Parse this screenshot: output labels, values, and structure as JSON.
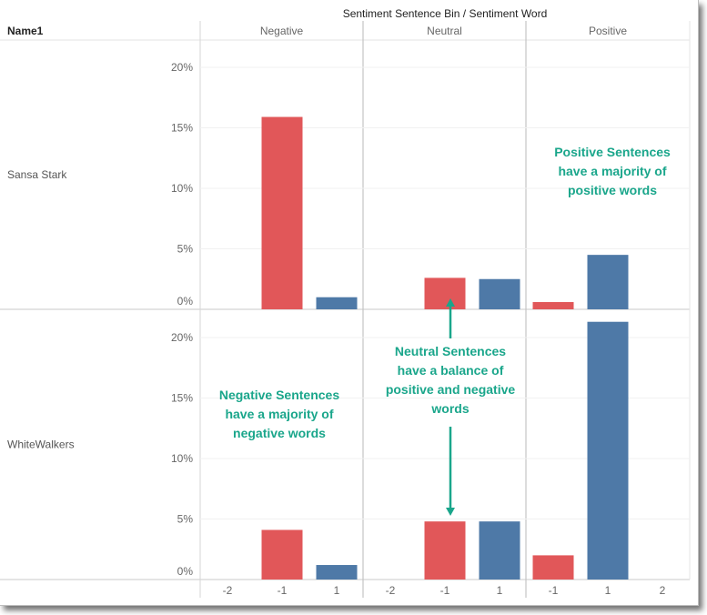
{
  "chart_data": {
    "type": "bar",
    "title": "Sentiment Sentence Bin / Sentiment Word",
    "row_header": "Name1",
    "columns": [
      {
        "name": "Negative",
        "words": [
          "-2",
          "-1",
          "1"
        ]
      },
      {
        "name": "Neutral",
        "words": [
          "-2",
          "-1",
          "1"
        ]
      },
      {
        "name": "Positive",
        "words": [
          "-1",
          "1",
          "2"
        ]
      }
    ],
    "rows": [
      {
        "name": "Sansa Stark",
        "ylim": [
          0,
          0.22
        ],
        "yticks": [
          "20%",
          "15%",
          "10%",
          "5%",
          "0%"
        ],
        "tick_values": [
          0.2,
          0.15,
          0.1,
          0.05,
          0.0
        ],
        "values": [
          [
            0,
            0.159,
            0.01
          ],
          [
            0,
            0.026,
            0.025
          ],
          [
            0.006,
            0.045,
            0
          ]
        ]
      },
      {
        "name": "WhiteWalkers",
        "ylim": [
          0,
          0.22
        ],
        "yticks": [
          "20%",
          "15%",
          "10%",
          "5%",
          "0%"
        ],
        "tick_values": [
          0.2,
          0.15,
          0.1,
          0.05,
          0.0
        ],
        "values": [
          [
            0,
            0.041,
            0.012
          ],
          [
            0,
            0.048,
            0.048
          ],
          [
            0.02,
            0.213,
            0
          ]
        ]
      }
    ],
    "colors": {
      "negative_word": "#e15759",
      "positive_word": "#4e79a7"
    },
    "annotations": [
      {
        "lines": [
          "Positive Sentences",
          "have a majority of",
          "positive words"
        ]
      },
      {
        "lines": [
          "Neutral Sentences",
          "have a balance of",
          "positive and negative",
          "words"
        ]
      },
      {
        "lines": [
          "Negative Sentences",
          "have a majority of",
          "negative words"
        ]
      }
    ],
    "annotation_color": "#1aa68b"
  }
}
